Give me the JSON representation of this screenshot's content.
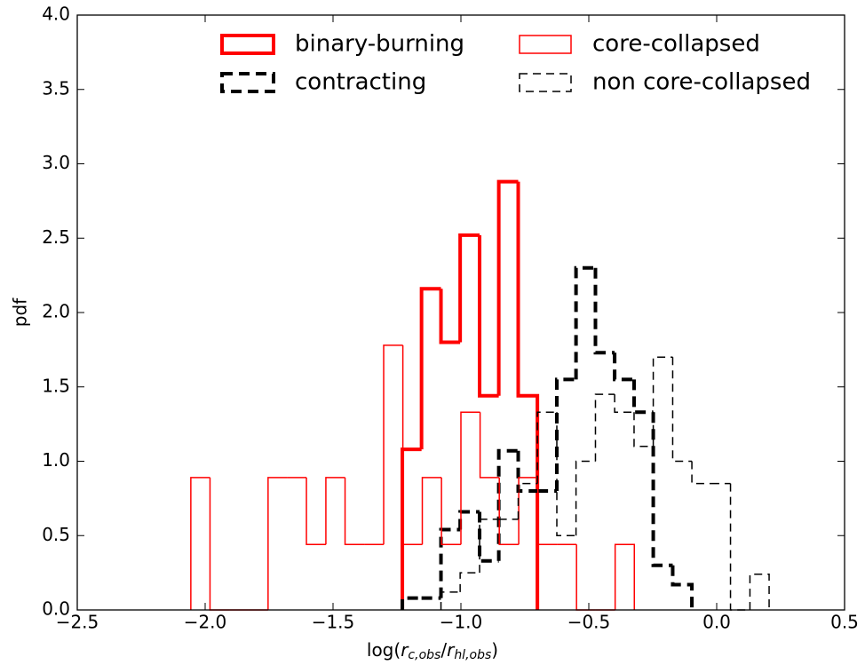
{
  "chart_data": {
    "type": "histogram",
    "xlabel": [
      "log(",
      "r",
      "c,obs",
      "/",
      "r",
      "hl,obs",
      ")"
    ],
    "ylabel": "pdf",
    "xlim": [
      -2.5,
      0.5
    ],
    "ylim": [
      0,
      4.0
    ],
    "xticks": [
      {
        "value": -2.5,
        "label": "−2.5"
      },
      {
        "value": -2.0,
        "label": "−2.0"
      },
      {
        "value": -1.5,
        "label": "−1.5"
      },
      {
        "value": -1.0,
        "label": "−1.0"
      },
      {
        "value": -0.5,
        "label": "−0.5"
      },
      {
        "value": 0.0,
        "label": "0.0"
      },
      0.5
    ],
    "yticks": [
      {
        "value": 0,
        "label": "0.0"
      },
      0.5,
      {
        "value": 1,
        "label": "1.0"
      },
      1.5,
      {
        "value": 2,
        "label": "2.0"
      },
      2.5,
      {
        "value": 3,
        "label": "3.0"
      },
      3.5,
      {
        "value": 4,
        "label": "4.0"
      }
    ],
    "legend": "upper center",
    "series": [
      {
        "name": "binary-burning",
        "color": "#ff0000",
        "style": "thick-solid",
        "bins": [
          -1.229,
          -1.154,
          -1.078,
          -1.003,
          -0.927,
          -0.852,
          -0.776,
          -0.701
        ],
        "values": [
          1.08,
          2.16,
          1.8,
          2.52,
          1.44,
          2.88,
          1.44
        ]
      },
      {
        "name": "contracting",
        "color": "#000000",
        "style": "thick-dashed",
        "bins": [
          -1.229,
          -1.154,
          -1.078,
          -1.003,
          -0.927,
          -0.852,
          -0.776,
          -0.701,
          -0.625,
          -0.55,
          -0.474,
          -0.399,
          -0.323,
          -0.248,
          -0.172,
          -0.097
        ],
        "values": [
          0.08,
          0.08,
          0.54,
          0.66,
          0.33,
          1.07,
          0.8,
          0.8,
          1.55,
          2.3,
          1.73,
          1.55,
          1.33,
          0.3,
          0.17
        ]
      },
      {
        "name": "core-collapsed",
        "color": "#ff0000",
        "style": "thin-solid",
        "bins": [
          -2.056,
          -1.981,
          -1.905,
          -1.83,
          -1.754,
          -1.679,
          -1.604,
          -1.528,
          -1.453,
          -1.377,
          -1.302,
          -1.227,
          -1.151,
          -1.076,
          -1.0,
          -0.925,
          -0.85,
          -0.774,
          -0.699,
          -0.623,
          -0.548,
          -0.473,
          -0.397,
          -0.322
        ],
        "values": [
          0.89,
          0,
          0,
          0,
          0.89,
          0.89,
          0.44,
          0.89,
          0.44,
          0.44,
          1.78,
          0.44,
          0.89,
          0.44,
          1.33,
          0.89,
          0.44,
          0.89,
          0.44,
          0.44,
          0,
          0,
          0.44
        ]
      },
      {
        "name": "non core-collapsed",
        "color": "#000000",
        "style": "thin-dashed",
        "bins": [
          -1.078,
          -1.003,
          -0.927,
          -0.852,
          -0.776,
          -0.701,
          -0.625,
          -0.55,
          -0.474,
          -0.399,
          -0.323,
          -0.248,
          -0.172,
          -0.097,
          -0.021,
          0.054,
          0.13,
          0.205
        ],
        "values": [
          0.12,
          0.25,
          0.61,
          0.61,
          0.85,
          1.33,
          0.5,
          1.0,
          1.45,
          1.33,
          1.1,
          1.7,
          1.0,
          0.85,
          0.85,
          0,
          0.24
        ]
      }
    ]
  }
}
